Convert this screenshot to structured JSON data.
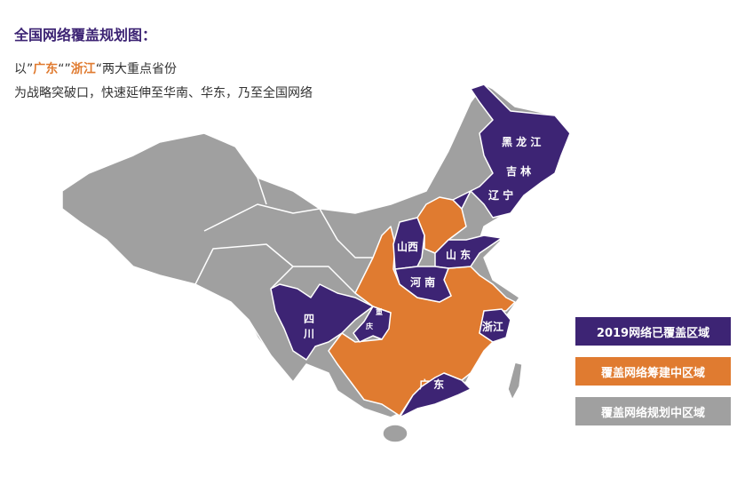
{
  "title": "全国网络覆盖规划图：",
  "intro": {
    "prefix": "以”",
    "province1": "广东",
    "mid": "“”",
    "province2": "浙江",
    "suffix": "“两大重点省份",
    "line2": "为战略突破口，快速延伸至华南、华东，乃至全国网络"
  },
  "colors": {
    "covered": "#3d2474",
    "building": "#e07b30",
    "planned": "#a0a0a0"
  },
  "map_labels": {
    "heilongjiang": "黑 龙 江",
    "jilin": "吉 林",
    "liaoning": "辽 宁",
    "shanxi": "山西",
    "shandong": "山 东",
    "henan": "河 南",
    "sichuan_1": "四",
    "sichuan_2": "川",
    "chongqing_1": "重",
    "chongqing_2": "庆",
    "zhejiang": "浙江",
    "guangdong": "广 东"
  },
  "legend": [
    {
      "label": "2019网络已覆盖区域",
      "status": "covered"
    },
    {
      "label": "覆盖网络筹建中区域",
      "status": "building"
    },
    {
      "label": "覆盖网络规划中区域",
      "status": "planned"
    }
  ]
}
